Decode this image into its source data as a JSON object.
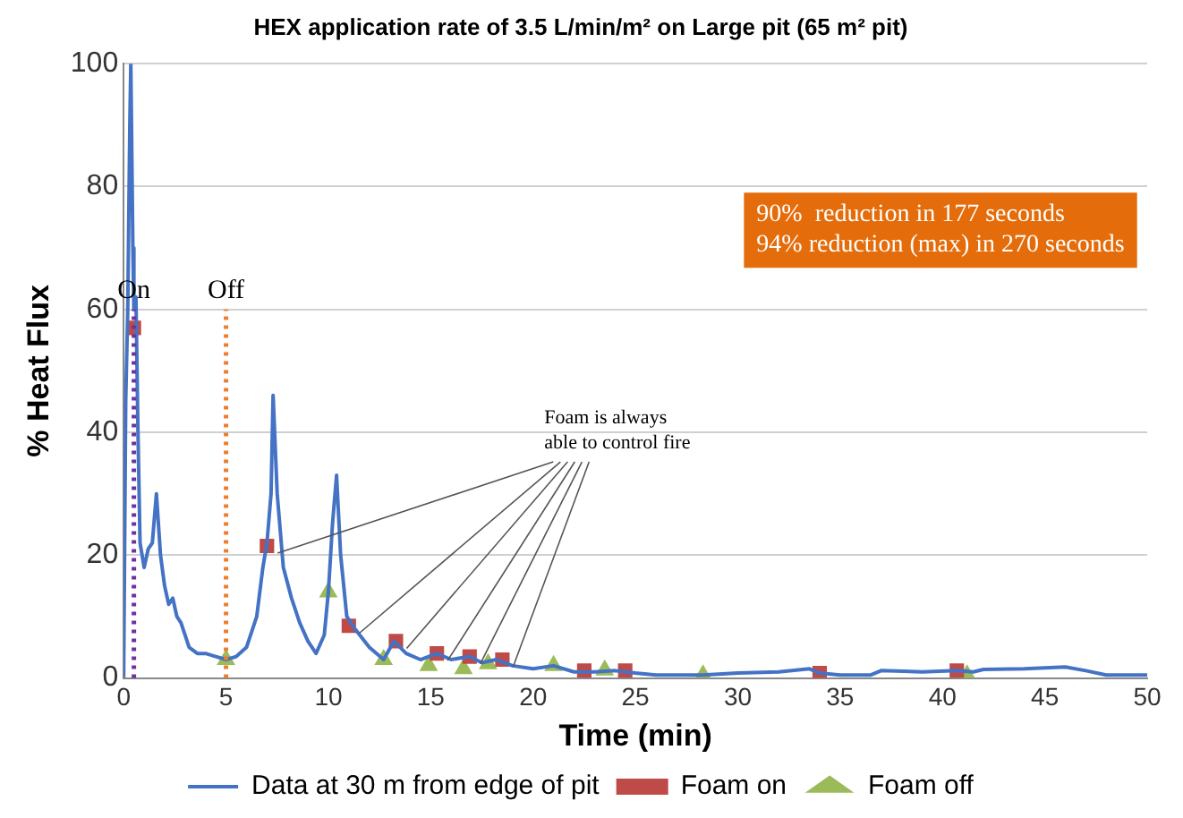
{
  "chart_data": {
    "type": "line",
    "title": "HEX application rate of 3.5 L/min/m² on Large pit (65 m² pit)",
    "xlabel": "Time (min)",
    "ylabel": "% Heat Flux",
    "xlim": [
      0,
      50
    ],
    "xticks": [
      0,
      5,
      10,
      15,
      20,
      25,
      30,
      35,
      40,
      45,
      50
    ],
    "ylim": [
      0,
      100
    ],
    "yticks": [
      0,
      20,
      40,
      60,
      80,
      100
    ],
    "grid": "y",
    "legend": "bottom",
    "series": [
      {
        "name": "Data at 30 m from edge of pit",
        "color": "#4472c4",
        "marker": "none",
        "x": [
          0,
          0.1,
          0.2,
          0.3,
          0.35,
          0.45,
          0.5,
          0.6,
          0.7,
          0.8,
          1.0,
          1.2,
          1.4,
          1.6,
          1.8,
          2.0,
          2.2,
          2.4,
          2.6,
          2.8,
          3.2,
          3.6,
          4,
          4.5,
          5,
          5.5,
          6,
          6.5,
          6.8,
          7.0,
          7.2,
          7.3,
          7.5,
          7.8,
          8.2,
          8.6,
          9,
          9.4,
          9.8,
          10,
          10.2,
          10.4,
          10.6,
          10.9,
          11.3,
          12,
          12.7,
          13.2,
          13.8,
          14.5,
          15.3,
          16,
          16.9,
          17.5,
          18.2,
          19,
          20,
          21,
          22,
          23,
          24,
          25,
          26,
          27,
          28.3,
          30,
          32,
          33.5,
          34,
          35,
          36.5,
          37,
          39,
          40.7,
          41.5,
          42,
          44,
          46,
          47,
          48,
          50
        ],
        "values": [
          0,
          45,
          60,
          90,
          100,
          70,
          60,
          62,
          40,
          22,
          18,
          21,
          22,
          30,
          20,
          15,
          12,
          13,
          10,
          9,
          5,
          4,
          4,
          3.5,
          3,
          3.5,
          5,
          10,
          18,
          22,
          30,
          46,
          30,
          18,
          13,
          9,
          6,
          4,
          7,
          14,
          25,
          33,
          20,
          10,
          8,
          5,
          3,
          6,
          4,
          3,
          4,
          3,
          3.5,
          2.5,
          3,
          2,
          1.5,
          2,
          1,
          1,
          1.2,
          0.8,
          0.5,
          0.5,
          0.5,
          0.8,
          1,
          1.5,
          0.8,
          0.5,
          0.5,
          1.2,
          1,
          1.2,
          1,
          1.4,
          1.5,
          1.8,
          1.2,
          0.5,
          0.5
        ]
      },
      {
        "name": "Foam on",
        "type": "scatter",
        "color": "#be4b48",
        "marker": "square",
        "x": [
          0.5,
          7,
          11,
          13.3,
          15.3,
          16.9,
          18.5,
          22.5,
          24.5,
          34,
          40.7
        ],
        "values": [
          57,
          21.5,
          8.5,
          6,
          4,
          3.5,
          3,
          1.2,
          1.2,
          0.8,
          1.2
        ]
      },
      {
        "name": "Foam off",
        "type": "scatter",
        "color": "#9bbb59",
        "marker": "triangle",
        "x": [
          5,
          10,
          12.7,
          14.9,
          16.6,
          17.8,
          21,
          23.5,
          28.3,
          41.2
        ],
        "values": [
          3,
          14,
          3,
          2,
          1.5,
          2.3,
          2,
          1.3,
          0.5,
          0.5
        ]
      }
    ],
    "ref_lines": [
      {
        "axis": "x",
        "value": 0.5,
        "label": "On",
        "color": "#7030a0",
        "line_style": "dotted"
      },
      {
        "axis": "x",
        "value": 5,
        "label": "Off",
        "color": "#ed7d31",
        "line_style": "dotted"
      }
    ],
    "annotations": [
      "90%  reduction in 177 seconds\n94% reduction (max) in 270 seconds",
      {
        "text": "Foam is always\nable to control fire",
        "x": 7,
        "y": 21.5
      }
    ]
  }
}
